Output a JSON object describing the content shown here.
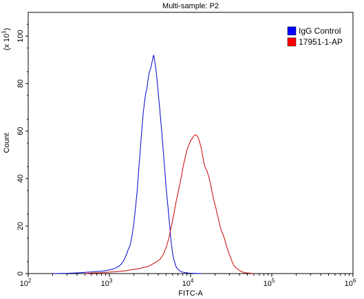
{
  "chart_data": {
    "type": "line",
    "title": "Multi-sample: P2",
    "xlabel": "FITC-A",
    "ylabel": "Count",
    "y_multiplier_label": "(x 10",
    "y_multiplier_exp": "1",
    "y_multiplier_close": ")",
    "x_scale": "log",
    "xlim": [
      100,
      1000000
    ],
    "ylim": [
      0,
      110
    ],
    "x_ticks": [
      {
        "value": 100,
        "base": "10",
        "exp": "2"
      },
      {
        "value": 1000,
        "base": "10",
        "exp": "3"
      },
      {
        "value": 10000,
        "base": "10",
        "exp": "4"
      },
      {
        "value": 100000,
        "base": "10",
        "exp": "5"
      },
      {
        "value": 1000000,
        "base": "10",
        "exp": "6"
      }
    ],
    "y_ticks": [
      "0",
      "20",
      "40",
      "60",
      "80",
      "100"
    ],
    "legend_position": "top-right",
    "grid": false,
    "series": [
      {
        "name": "IgG Control",
        "color": "#0000cc",
        "legend_color": "#0000ff",
        "x": [
          200,
          300,
          400,
          500,
          600,
          700,
          800,
          900,
          1000,
          1100,
          1200,
          1300,
          1400,
          1500,
          1600,
          1700,
          1800,
          1900,
          2000,
          2100,
          2200,
          2300,
          2400,
          2500,
          2600,
          2700,
          2800,
          2900,
          3000,
          3100,
          3200,
          3300,
          3400,
          3500,
          3600,
          3700,
          3800,
          3900,
          4000,
          4100,
          4200,
          4300,
          4400,
          4500,
          4600,
          4700,
          4800,
          4900,
          5000,
          5100,
          5200,
          5300,
          5400,
          5500,
          5600,
          5700,
          5800,
          5900,
          6000,
          6200,
          6400,
          6600,
          6800,
          7000,
          7200,
          7400,
          7600,
          7800,
          8000,
          8300,
          8600,
          9000,
          9500,
          10000,
          11000,
          12000,
          14000
        ],
        "y": [
          0,
          0.1,
          0.3,
          0.5,
          0.7,
          0.9,
          1.0,
          1.2,
          1.6,
          1.8,
          2.4,
          3.0,
          4.0,
          5.5,
          7.5,
          10.0,
          12.0,
          16.0,
          21.0,
          28.0,
          35.0,
          44.0,
          52.0,
          60.0,
          67.0,
          72.0,
          76.0,
          78.0,
          82.0,
          85.0,
          86.0,
          88.0,
          90.0,
          92.0,
          90.0,
          87.0,
          84.0,
          80.0,
          76.0,
          72.0,
          68.0,
          64.0,
          60.0,
          56.0,
          52.0,
          48.0,
          44.0,
          40.0,
          36.0,
          33.0,
          30.0,
          27.0,
          24.0,
          21.0,
          18.0,
          15.0,
          12.5,
          10.5,
          8.5,
          6.0,
          4.5,
          3.0,
          2.2,
          1.8,
          1.4,
          1.1,
          0.9,
          0.7,
          0.6,
          0.5,
          0.4,
          0.3,
          0.2,
          0.1,
          0.1,
          0.05,
          0
        ]
      },
      {
        "name": "17951-1-AP",
        "color": "#cc0000",
        "legend_color": "#ff0000",
        "x": [
          500,
          600,
          700,
          800,
          900,
          1000,
          1100,
          1200,
          1400,
          1600,
          1800,
          2000,
          2200,
          2400,
          2600,
          2800,
          3000,
          3200,
          3400,
          3600,
          3800,
          4000,
          4200,
          4400,
          4600,
          4800,
          5000,
          5200,
          5400,
          5600,
          5800,
          6000,
          6300,
          6600,
          7000,
          7400,
          7800,
          8200,
          8600,
          9000,
          9500,
          10000,
          10500,
          11000,
          11500,
          12000,
          12500,
          13000,
          13500,
          14000,
          14500,
          15000,
          16000,
          17000,
          18000,
          19000,
          20000,
          21000,
          22000,
          23000,
          24000,
          25000,
          26000,
          27000,
          28000,
          29000,
          30000,
          31000,
          32000,
          33000,
          34000,
          36000,
          38000,
          40000,
          42000,
          45000,
          48000,
          52000,
          56000,
          60000
        ],
        "y": [
          0,
          0.2,
          0.3,
          0.4,
          0.5,
          0.6,
          0.7,
          0.8,
          1.0,
          1.2,
          1.5,
          1.8,
          2.0,
          2.2,
          2.5,
          2.8,
          3.0,
          3.5,
          4.0,
          4.5,
          5.0,
          5.5,
          6.0,
          7.0,
          8.0,
          9.5,
          11.0,
          13.0,
          15.0,
          17.5,
          20.0,
          22.5,
          26.0,
          30.0,
          34.0,
          38.0,
          42.0,
          46.0,
          49.0,
          52.0,
          54.0,
          56.0,
          57.0,
          58.0,
          58.5,
          58.0,
          57.0,
          55.0,
          53.0,
          50.0,
          47.0,
          45.0,
          43.0,
          40.0,
          36.0,
          32.0,
          29.0,
          26.0,
          23.0,
          20.0,
          18.0,
          16.5,
          15.0,
          13.0,
          11.0,
          9.5,
          8.0,
          7.0,
          5.5,
          4.5,
          3.5,
          2.5,
          1.8,
          1.3,
          0.9,
          0.5,
          0.3,
          0.2,
          0.1,
          0
        ]
      }
    ]
  }
}
